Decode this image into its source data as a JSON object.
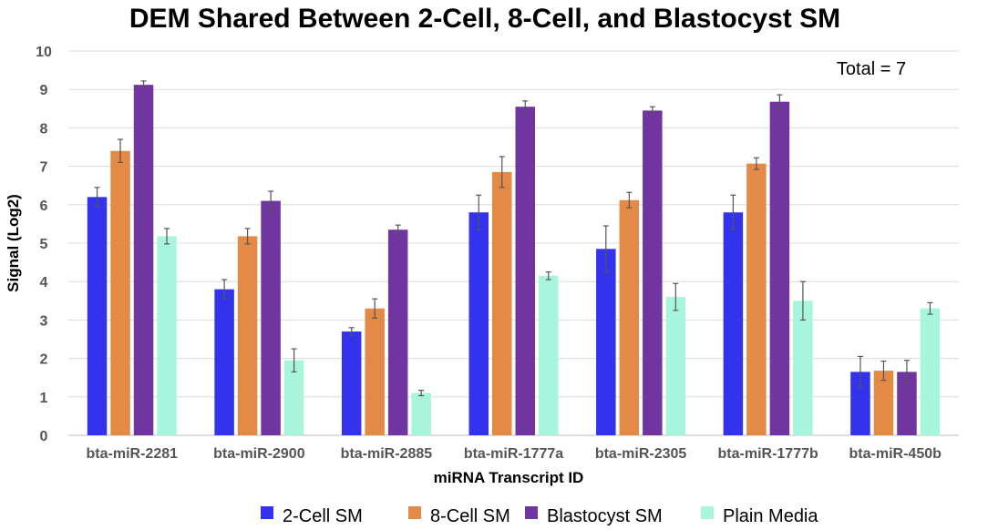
{
  "chart_data": {
    "type": "bar",
    "title": "DEM Shared Between 2-Cell, 8-Cell, and Blastocyst SM",
    "xlabel": "miRNA Transcript ID",
    "ylabel": "Signal (Log2)",
    "ylim": [
      0,
      10
    ],
    "yticks": [
      "0",
      "1",
      "2",
      "3",
      "4",
      "5",
      "6",
      "7",
      "8",
      "9",
      "10"
    ],
    "grid": true,
    "legend_position": "bottom",
    "annotation": "Total = 7",
    "categories": [
      "bta-miR-2281",
      "bta-miR-2900",
      "bta-miR-2885",
      "bta-miR-1777a",
      "bta-miR-2305",
      "bta-miR-1777b",
      "bta-miR-450b"
    ],
    "series": [
      {
        "name": "2-Cell SM",
        "color": "#3333ee",
        "values": [
          6.2,
          3.8,
          2.7,
          5.8,
          4.85,
          5.8,
          1.65
        ],
        "errors": [
          0.25,
          0.25,
          0.1,
          0.45,
          0.6,
          0.45,
          0.4
        ]
      },
      {
        "name": "8-Cell SM",
        "color": "#e38a47",
        "values": [
          7.4,
          5.18,
          3.3,
          6.85,
          6.12,
          7.07,
          1.68
        ],
        "errors": [
          0.3,
          0.2,
          0.25,
          0.4,
          0.2,
          0.15,
          0.25
        ]
      },
      {
        "name": "Blastocyst SM",
        "color": "#7035a0",
        "values": [
          9.12,
          6.1,
          5.35,
          8.55,
          8.45,
          8.68,
          1.65
        ],
        "errors": [
          0.1,
          0.25,
          0.12,
          0.15,
          0.1,
          0.18,
          0.3
        ]
      },
      {
        "name": "Plain Media",
        "color": "#a8f5de",
        "values": [
          5.18,
          1.95,
          1.1,
          4.15,
          3.6,
          3.5,
          3.3
        ],
        "errors": [
          0.2,
          0.3,
          0.07,
          0.1,
          0.35,
          0.5,
          0.15
        ]
      }
    ]
  }
}
